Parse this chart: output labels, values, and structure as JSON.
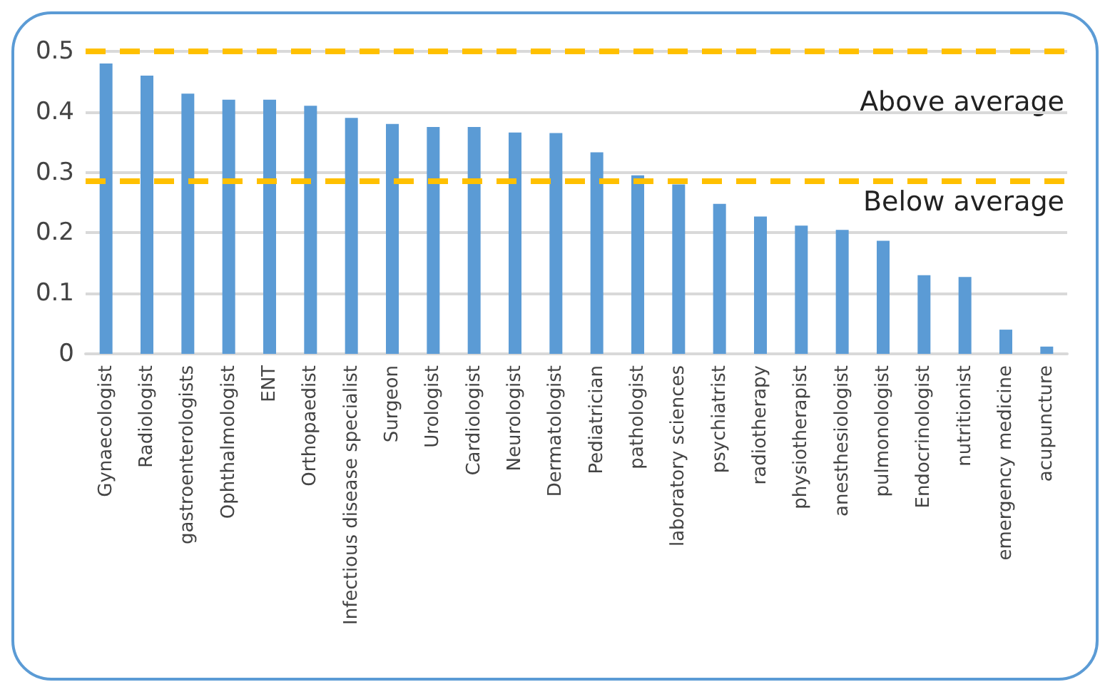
{
  "chart_data": {
    "type": "bar",
    "categories": [
      "Gynaecologist",
      "Radiologist",
      "gastroenterologists",
      "Ophthalmologist",
      "ENT",
      "Orthopaedist",
      "Infectious disease specialist",
      "Surgeon",
      "Urologist",
      "Cardiologist",
      "Neurologist",
      "Dermatologist",
      "Pediatrician",
      "pathologist",
      "laboratory sciences",
      "psychiatrist",
      "radiotherapy",
      "physiotherapist",
      "anesthesiologist",
      "pulmonologist",
      "Endocrinologist",
      "nutritionist",
      "emergency medicine",
      "acupuncture"
    ],
    "values": [
      0.48,
      0.46,
      0.43,
      0.42,
      0.42,
      0.41,
      0.39,
      0.38,
      0.375,
      0.375,
      0.366,
      0.365,
      0.333,
      0.295,
      0.28,
      0.248,
      0.227,
      0.212,
      0.205,
      0.187,
      0.13,
      0.127,
      0.04,
      0.012
    ],
    "color": "#5b9bd5",
    "ylim": [
      0,
      0.5
    ],
    "yticks": [
      0,
      0.1,
      0.2,
      0.3,
      0.4,
      0.5
    ],
    "grid": "y",
    "ref_lines": [
      {
        "axis": "y",
        "value": 0.5,
        "color": "#ffc000",
        "line_style": "dashed"
      },
      {
        "axis": "y",
        "value": 0.285,
        "color": "#ffc000",
        "line_style": "dashed"
      }
    ],
    "annotations": [
      "Above average",
      "Below average"
    ]
  }
}
